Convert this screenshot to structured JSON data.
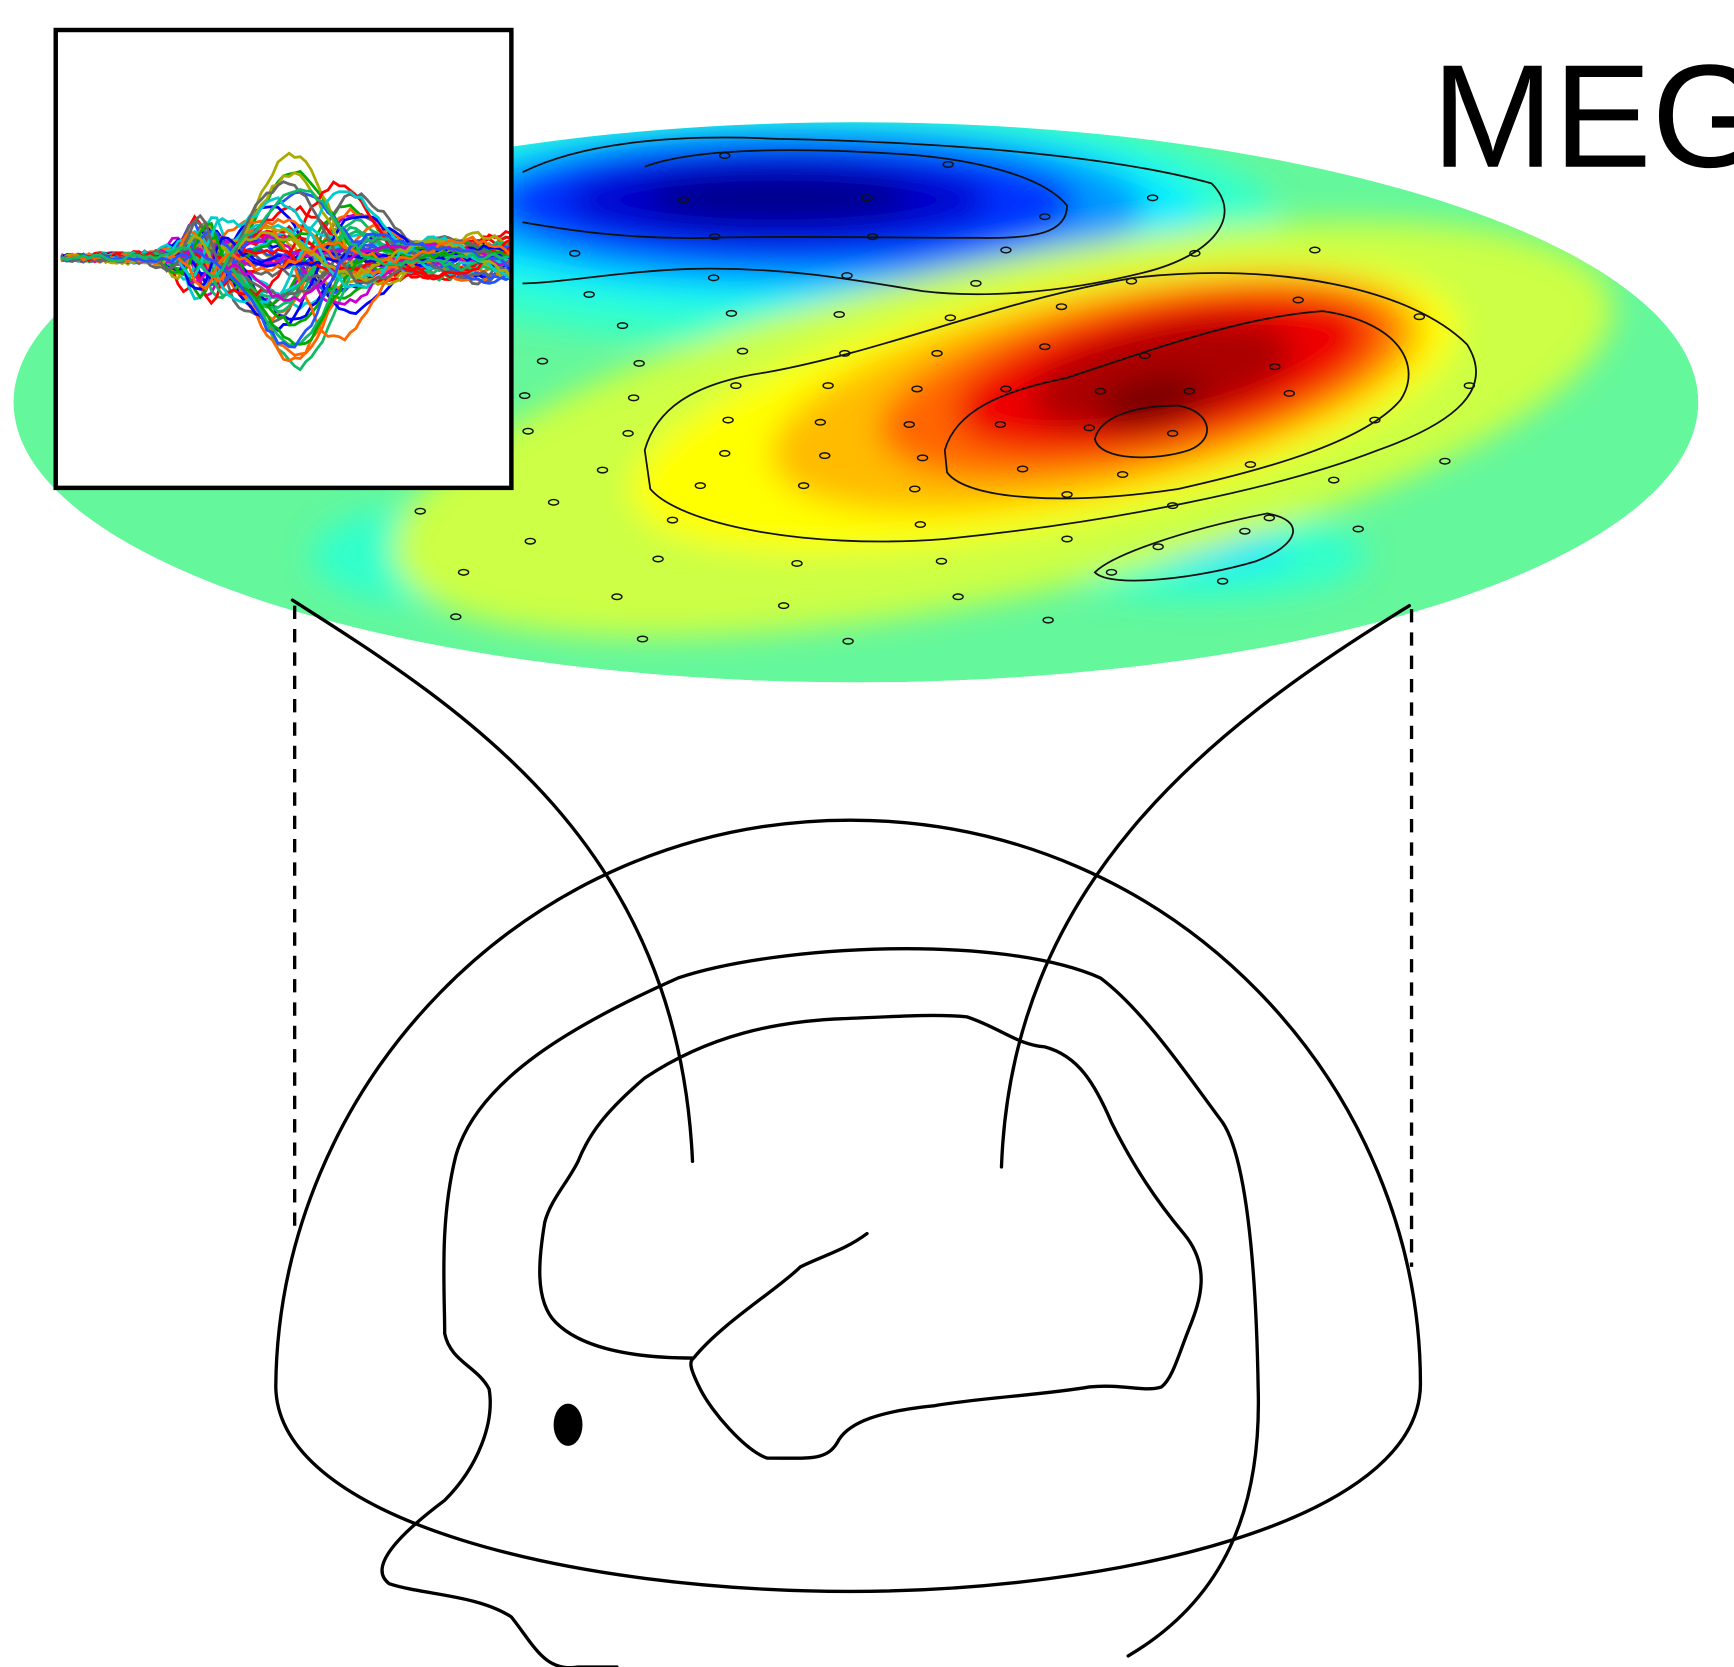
{
  "label": "MEG"
}
